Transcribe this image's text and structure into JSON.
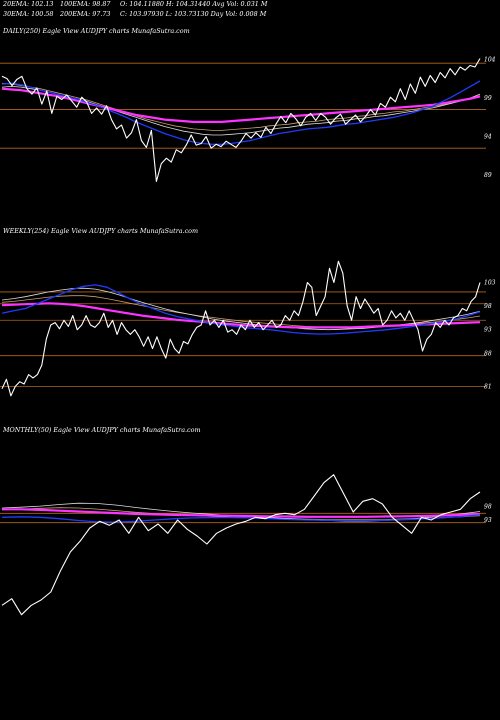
{
  "header": {
    "ema20": "20EMA: 102.13",
    "ema100": "100EMA: 98.87",
    "ohlc1": "O: 104.11880 H: 104.31440 Avg Vol: 0.031 M",
    "ema30": "30EMA: 100.58",
    "ema200": "200EMA: 97.73",
    "ohlc2": "C: 103.97930 L: 103.73130 Day Vol: 0.008  M"
  },
  "colors": {
    "background": "#000000",
    "price": "#ffffff",
    "ema_fast": "#1e3cff",
    "ema_pink": "#ff33ff",
    "ema_tan": "#c8a06e",
    "ema_white": "#dddddd",
    "level_lines": "#b5651d"
  },
  "chart_data": [
    {
      "type": "line",
      "title": "DAILY(250) Eagle  View  AUDJPY charts MunafaSutra.com",
      "yticks": [
        "104",
        "99",
        "94",
        "89"
      ],
      "ytick_values": [
        104,
        99,
        94,
        89
      ],
      "ylim": [
        84.5,
        106.5
      ],
      "levels": [
        103.5,
        97.5,
        92.5
      ],
      "series": [
        {
          "role": "price",
          "values": [
            101.8,
            101.5,
            100.6,
            101.4,
            101.8,
            100.2,
            99.5,
            100.3,
            98.2,
            99.9,
            97.0,
            99.2,
            98.8,
            99.4,
            98.6,
            97.8,
            99.1,
            98.5,
            97.0,
            97.7,
            96.9,
            98.0,
            96.2,
            95.0,
            95.5,
            93.8,
            94.5,
            96.2,
            93.5,
            92.6,
            94.8,
            88.2,
            90.5,
            91.2,
            90.7,
            92.3,
            91.9,
            92.9,
            94.2,
            92.9,
            93.1,
            94.0,
            92.5,
            93.0,
            92.7,
            93.4,
            93.0,
            92.6,
            93.4,
            94.4,
            93.8,
            94.5,
            93.9,
            95.2,
            94.4,
            95.6,
            96.6,
            95.8,
            97.0,
            96.3,
            95.4,
            96.5,
            97.0,
            96.1,
            97.0,
            96.5,
            95.6,
            96.4,
            96.9,
            95.6,
            96.2,
            96.8,
            95.9,
            96.6,
            97.5,
            96.8,
            98.3,
            97.8,
            99.1,
            98.5,
            100.2,
            98.8,
            100.8,
            99.6,
            101.7,
            100.5,
            101.9,
            101.0,
            102.3,
            101.6,
            102.8,
            102.0,
            103.0,
            102.6,
            103.2,
            103.0,
            104.1
          ]
        },
        {
          "role": "ema_fast",
          "values": [
            100.8,
            100.9,
            100.7,
            100.4,
            100.0,
            99.7,
            99.4,
            99.1,
            98.8,
            98.4,
            98.0,
            97.5,
            97.0,
            96.5,
            95.9,
            95.4,
            94.9,
            94.4,
            94.0,
            93.6,
            93.3,
            93.1,
            93.0,
            93.0,
            93.1,
            93.3,
            93.5,
            93.8,
            94.1,
            94.4,
            94.6,
            94.8,
            95.0,
            95.1,
            95.2,
            95.4,
            95.6,
            95.7,
            95.9,
            96.1,
            96.3,
            96.5,
            96.8,
            97.1,
            97.5,
            97.9,
            98.5,
            99.1,
            99.8,
            100.5,
            101.2
          ]
        },
        {
          "role": "ema_pink",
          "values": [
            100.2,
            100.1,
            100.0,
            99.8,
            99.6,
            99.4,
            99.2,
            98.9,
            98.6,
            98.3,
            98.0,
            97.7,
            97.4,
            97.1,
            96.8,
            96.6,
            96.4,
            96.2,
            96.1,
            96.0,
            95.9,
            95.9,
            95.9,
            95.9,
            96.0,
            96.1,
            96.2,
            96.3,
            96.4,
            96.5,
            96.6,
            96.7,
            96.8,
            96.9,
            97.0,
            97.1,
            97.2,
            97.3,
            97.4,
            97.5,
            97.6,
            97.7,
            97.8,
            97.9,
            98.0,
            98.1,
            98.3,
            98.5,
            98.7,
            98.9,
            99.2
          ]
        },
        {
          "role": "ema_tan",
          "values": [
            100.9,
            100.8,
            100.6,
            100.4,
            100.2,
            99.9,
            99.6,
            99.3,
            99.0,
            98.7,
            98.3,
            97.9,
            97.5,
            97.1,
            96.7,
            96.3,
            96.0,
            95.7,
            95.4,
            95.2,
            95.0,
            94.9,
            94.8,
            94.8,
            94.9,
            95.0,
            95.1,
            95.2,
            95.4,
            95.5,
            95.6,
            95.8,
            95.9,
            96.0,
            96.2,
            96.3,
            96.4,
            96.6,
            96.7,
            96.9,
            97.0,
            97.2,
            97.3,
            97.5,
            97.7,
            97.9,
            98.1,
            98.4,
            98.7,
            99.0,
            99.3
          ]
        },
        {
          "role": "ema_white",
          "values": [
            100.4,
            100.5,
            100.4,
            100.2,
            100.0,
            99.7,
            99.4,
            99.1,
            98.8,
            98.5,
            98.1,
            97.7,
            97.3,
            96.9,
            96.5,
            96.1,
            95.7,
            95.3,
            95.0,
            94.7,
            94.5,
            94.3,
            94.2,
            94.2,
            94.3,
            94.4,
            94.5,
            94.7,
            94.9,
            95.1,
            95.2,
            95.4,
            95.6,
            95.7,
            95.8,
            96.0,
            96.1,
            96.3,
            96.4,
            96.6,
            96.7,
            96.9,
            97.1,
            97.3,
            97.5,
            97.7,
            98.0,
            98.3,
            98.6,
            99.0,
            99.5
          ]
        }
      ]
    },
    {
      "type": "line",
      "title": "WEEKLY(254) Eagle  View  AUDJPY charts MunafaSutra.com",
      "yticks": [
        "103",
        "98",
        "93",
        "88",
        "81"
      ],
      "ytick_values": [
        103,
        98,
        93,
        88,
        81
      ],
      "ylim": [
        76,
        112
      ],
      "levels": [
        101,
        98.5,
        95,
        87.5,
        81
      ],
      "series": [
        {
          "role": "price",
          "values": [
            80.5,
            82.5,
            79.0,
            81.0,
            82.0,
            81.5,
            83.5,
            82.8,
            83.5,
            85.5,
            91.0,
            94.0,
            94.5,
            93.2,
            95.0,
            93.7,
            96.0,
            93.0,
            94.0,
            96.0,
            94.0,
            93.5,
            94.5,
            96.5,
            93.5,
            95.0,
            92.0,
            94.5,
            93.0,
            92.0,
            93.0,
            91.5,
            89.5,
            91.5,
            89.0,
            91.5,
            89.0,
            87.0,
            91.0,
            89.0,
            88.0,
            90.5,
            90.0,
            92.0,
            93.5,
            94.0,
            97.0,
            94.0,
            95.0,
            93.5,
            95.0,
            92.5,
            93.0,
            92.0,
            94.0,
            93.0,
            95.0,
            93.5,
            94.5,
            93.0,
            94.0,
            95.0,
            93.5,
            94.0,
            96.0,
            95.0,
            97.0,
            96.0,
            99.0,
            103.0,
            102.0,
            96.0,
            98.0,
            100.0,
            106.0,
            103.0,
            107.5,
            105.0,
            98.0,
            95.0,
            100.0,
            97.5,
            99.5,
            98.0,
            96.5,
            97.5,
            94.0,
            95.0,
            97.0,
            95.5,
            96.5,
            95.0,
            97.0,
            95.0,
            93.0,
            88.5,
            91.0,
            92.0,
            94.5,
            93.5,
            95.0,
            94.0,
            95.5,
            96.0,
            97.5,
            97.0,
            99.0,
            100.0,
            103.0
          ]
        },
        {
          "role": "ema_fast",
          "values": [
            96.5,
            97.0,
            97.5,
            98.5,
            99.5,
            100.5,
            101.5,
            102.2,
            102.5,
            102.0,
            100.8,
            99.5,
            98.4,
            97.4,
            96.5,
            95.8,
            95.3,
            94.8,
            94.4,
            94.0,
            93.7,
            93.4,
            93.2,
            93.0,
            92.7,
            92.4,
            92.2,
            92.1,
            92.1,
            92.2,
            92.4,
            92.6,
            92.8,
            93.0,
            93.3,
            93.6,
            94.0,
            94.4,
            94.8,
            95.3,
            96.0,
            96.8
          ]
        },
        {
          "role": "ema_pink",
          "values": [
            98.2,
            98.3,
            98.4,
            98.5,
            98.6,
            98.5,
            98.3,
            98.0,
            97.6,
            97.2,
            96.8,
            96.4,
            96.0,
            95.7,
            95.4,
            95.1,
            94.9,
            94.7,
            94.5,
            94.3,
            94.1,
            93.9,
            93.8,
            93.7,
            93.6,
            93.5,
            93.5,
            93.5,
            93.5,
            93.5,
            93.5,
            93.6,
            93.7,
            93.8,
            93.9,
            94.0,
            94.1,
            94.2,
            94.3,
            94.4,
            94.5,
            94.6
          ]
        },
        {
          "role": "ema_tan",
          "values": [
            98.8,
            99.0,
            99.3,
            99.6,
            99.9,
            100.1,
            100.2,
            100.2,
            100.0,
            99.6,
            99.1,
            98.6,
            98.1,
            97.6,
            97.1,
            96.7,
            96.3,
            95.9,
            95.6,
            95.3,
            95.0,
            94.7,
            94.5,
            94.3,
            94.1,
            93.9,
            93.7,
            93.6,
            93.5,
            93.5,
            93.5,
            93.6,
            93.7,
            93.8,
            94.0,
            94.2,
            94.4,
            94.6,
            94.9,
            95.2,
            95.5,
            95.9
          ]
        },
        {
          "role": "ema_white",
          "values": [
            99.3,
            99.6,
            100.0,
            100.5,
            101.0,
            101.4,
            101.7,
            101.8,
            101.6,
            101.1,
            100.4,
            99.6,
            98.8,
            98.1,
            97.4,
            96.8,
            96.3,
            95.8,
            95.3,
            94.9,
            94.6,
            94.3,
            94.0,
            93.8,
            93.6,
            93.4,
            93.2,
            93.1,
            93.0,
            93.1,
            93.2,
            93.3,
            93.5,
            93.7,
            94.0,
            94.3,
            94.6,
            95.0,
            95.4,
            95.8,
            96.3,
            96.9
          ]
        }
      ]
    },
    {
      "type": "line",
      "title": "MONTHLY(50) Eagle  View  AUDJPY charts MunafaSutra.com",
      "yticks": [
        "98",
        "93"
      ],
      "ytick_values": [
        98,
        93
      ],
      "ylim": [
        48,
        123
      ],
      "levels": [
        95.5,
        92
      ],
      "series": [
        {
          "role": "price",
          "values": [
            61.0,
            63.5,
            57.5,
            61.0,
            63.0,
            66.0,
            74.0,
            81.0,
            85.0,
            90.0,
            92.5,
            91.0,
            93.0,
            88.0,
            94.0,
            89.0,
            91.5,
            88.0,
            93.0,
            89.5,
            87.0,
            84.0,
            88.0,
            90.0,
            91.5,
            92.5,
            94.0,
            93.5,
            95.0,
            95.5,
            95.0,
            97.0,
            102.0,
            107.0,
            110.0,
            103.0,
            96.0,
            100.0,
            101.0,
            99.0,
            94.0,
            91.0,
            88.0,
            94.0,
            93.0,
            95.0,
            96.0,
            97.0,
            101.0,
            103.5
          ]
        },
        {
          "role": "ema_fast",
          "values": [
            94.0,
            94.2,
            94.0,
            93.5,
            92.8,
            92.3,
            92.2,
            92.5,
            93.0,
            93.5,
            93.8,
            93.9,
            93.9,
            93.8,
            93.5,
            93.2,
            93.0,
            92.9,
            92.8,
            92.8,
            92.9,
            93.1,
            93.4,
            93.8,
            94.3,
            94.9
          ]
        },
        {
          "role": "ema_pink",
          "values": [
            97.0,
            97.0,
            96.8,
            96.5,
            96.2,
            95.9,
            95.6,
            95.3,
            95.1,
            94.9,
            94.8,
            94.7,
            94.6,
            94.5,
            94.4,
            94.3,
            94.2,
            94.2,
            94.2,
            94.2,
            94.3,
            94.4,
            94.5,
            94.7,
            94.9,
            95.2
          ]
        },
        {
          "role": "ema_tan",
          "values": [
            96.8,
            97.1,
            97.4,
            97.6,
            97.5,
            97.1,
            96.5,
            95.9,
            95.4,
            95.0,
            94.7,
            94.4,
            94.1,
            93.9,
            93.7,
            93.5,
            93.3,
            93.2,
            93.1,
            93.1,
            93.2,
            93.4,
            93.6,
            93.9,
            94.2,
            94.6
          ]
        },
        {
          "role": "ema_white",
          "values": [
            97.5,
            97.8,
            98.2,
            98.8,
            99.3,
            99.2,
            98.6,
            97.7,
            96.9,
            96.2,
            95.6,
            95.1,
            94.7,
            94.3,
            93.9,
            93.5,
            93.1,
            92.8,
            92.6,
            92.6,
            92.8,
            93.2,
            93.8,
            94.5,
            95.3,
            96.2
          ]
        }
      ]
    }
  ]
}
